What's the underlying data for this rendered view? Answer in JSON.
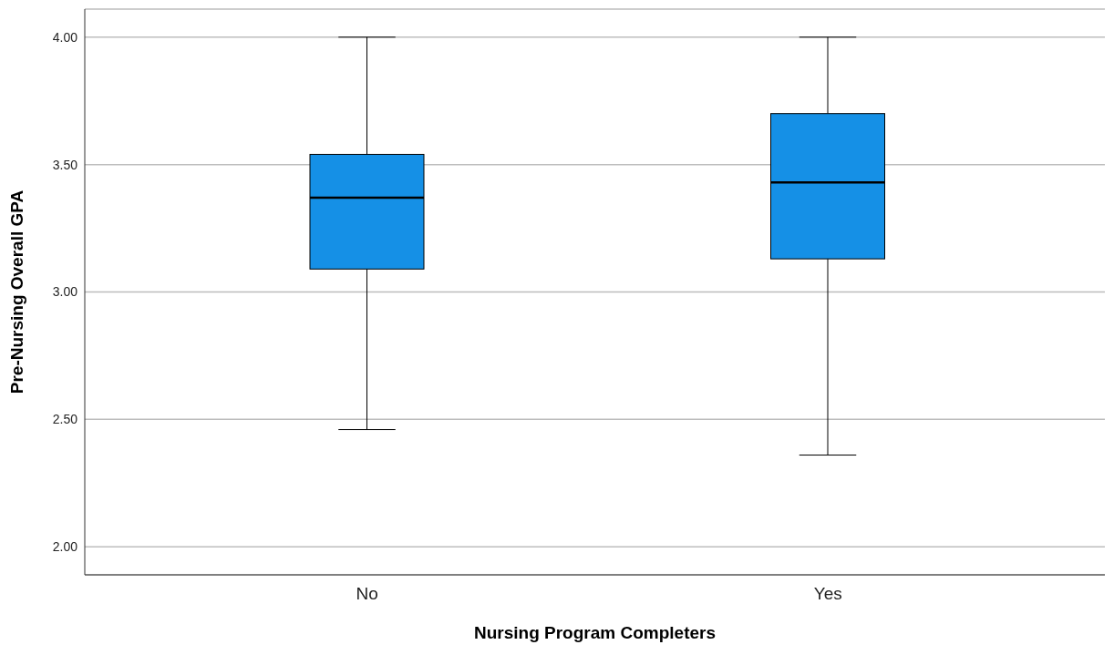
{
  "chart_data": {
    "type": "box",
    "xlabel": "Nursing Program Completers",
    "ylabel": "Pre-Nursing Overall GPA",
    "categories": [
      "No",
      "Yes"
    ],
    "boxes": [
      {
        "low": 2.46,
        "q1": 3.09,
        "median": 3.37,
        "q3": 3.54,
        "high": 4.0
      },
      {
        "low": 2.36,
        "q1": 3.13,
        "median": 3.43,
        "q3": 3.7,
        "high": 4.0
      }
    ],
    "color": "#1590e6",
    "ylim": [
      1.89,
      4.11
    ],
    "yticks": [
      {
        "value": 2,
        "label": "2.00"
      },
      {
        "value": 2.5,
        "label": "2.50"
      },
      {
        "value": 3,
        "label": "3.00"
      },
      {
        "value": 3.5,
        "label": "3.50"
      },
      {
        "value": 4,
        "label": "4.00"
      }
    ],
    "grid": "y"
  }
}
